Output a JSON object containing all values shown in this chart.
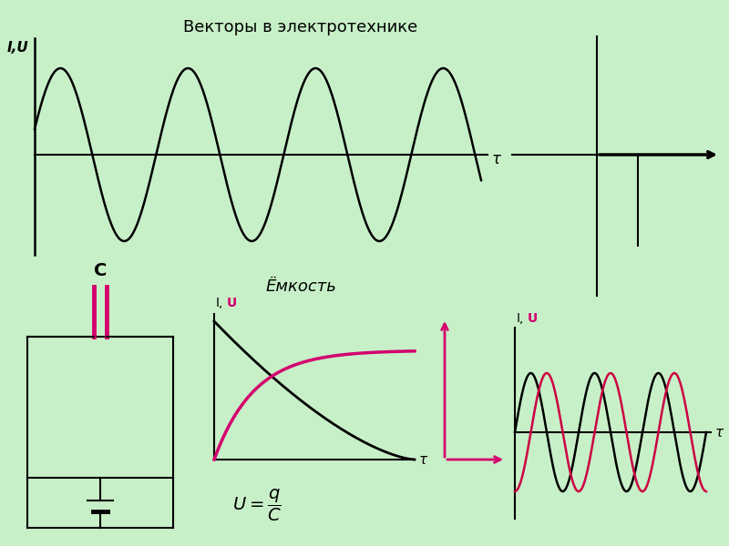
{
  "bg_color": "#c8f0c8",
  "title_top": "Векторы в электротехнике",
  "title_bottom": "Ёмкость",
  "label_IU_black": "I,",
  "label_IU_pink": "U",
  "label_tau": "τ",
  "label_C": "C",
  "line_color": "#000000",
  "pink_color": "#d4006e",
  "bg_color2": "#c8f0c8"
}
